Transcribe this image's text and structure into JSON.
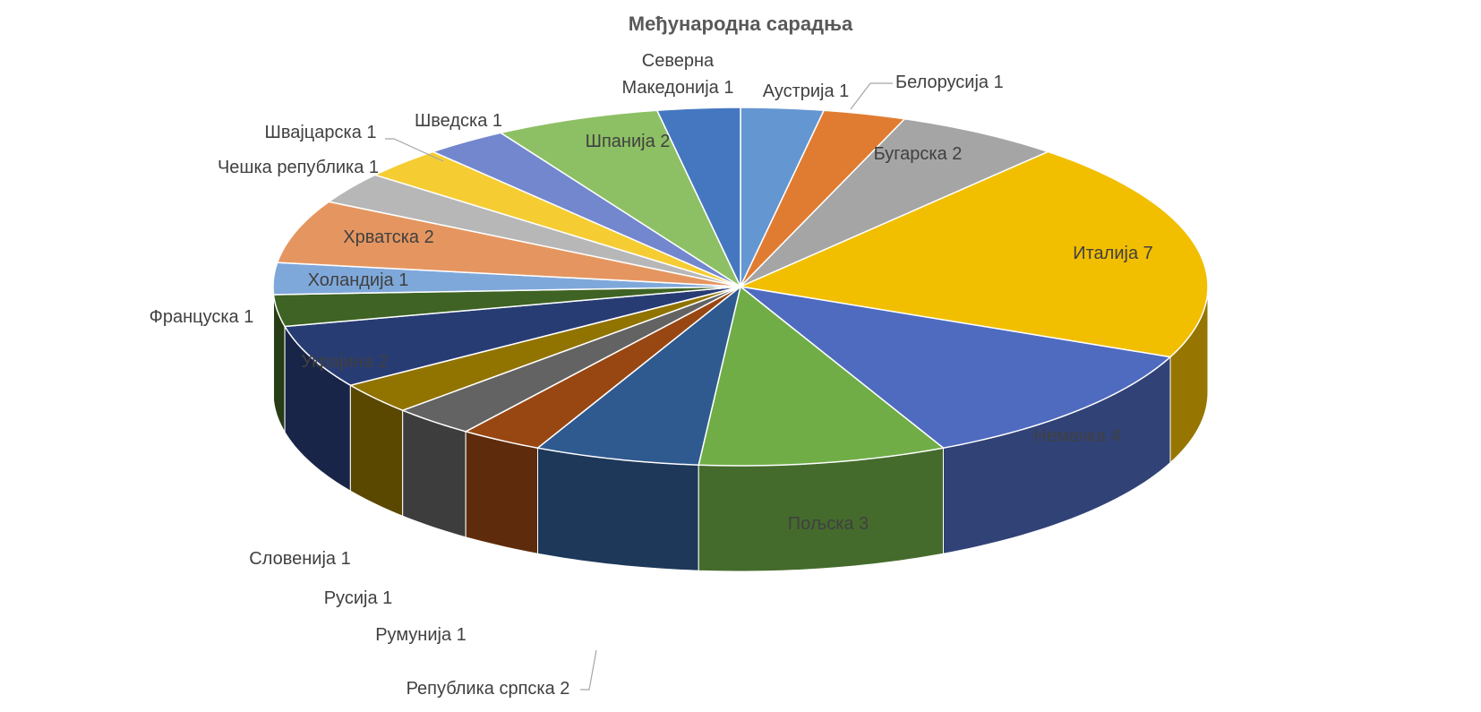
{
  "chart_data": {
    "type": "pie",
    "title": "Међународна сарадња",
    "style": "3d",
    "categories": [
      "Аустрија",
      "Белорусија",
      "Бугарска",
      "Италија",
      "Немачка",
      "Пољска",
      "Република српска",
      "Румунија",
      "Русија",
      "Словенија",
      "Украјина",
      "Француска",
      "Холандија",
      "Хрватска",
      "Чешка република",
      "Швајцарска",
      "Шведска",
      "Шпанија",
      "Северна Македонија"
    ],
    "values": [
      1,
      1,
      2,
      7,
      4,
      3,
      2,
      1,
      1,
      1,
      2,
      1,
      1,
      2,
      1,
      1,
      1,
      2,
      1
    ],
    "labels": [
      "Аустрија 1",
      "Белорусија 1",
      "Бугарска 2",
      "Италија 7",
      "Немачка 4",
      "Пољска 3",
      "Република српска 2",
      "Румунија 1",
      "Русија 1",
      "Словенија 1",
      "Украјина 2",
      "Француска 1",
      "Холандија 1",
      "Хрватска 2",
      "Чешка република 1",
      "Швајцарска 1",
      "Шведска 1",
      "Шпанија 2",
      "Северна Македонија 1"
    ],
    "colors": [
      "#6496D2",
      "#E07C31",
      "#A5A5A5",
      "#F2BE00",
      "#4F6BC0",
      "#70AD47",
      "#2F5A8F",
      "#984713",
      "#636363",
      "#917300",
      "#283C74",
      "#3E6324",
      "#7FA8DA",
      "#E59660",
      "#B7B7B7",
      "#F5CD33",
      "#7287CD",
      "#8DC064",
      "#4577C1"
    ],
    "legend": "none",
    "data_labels": "on"
  }
}
